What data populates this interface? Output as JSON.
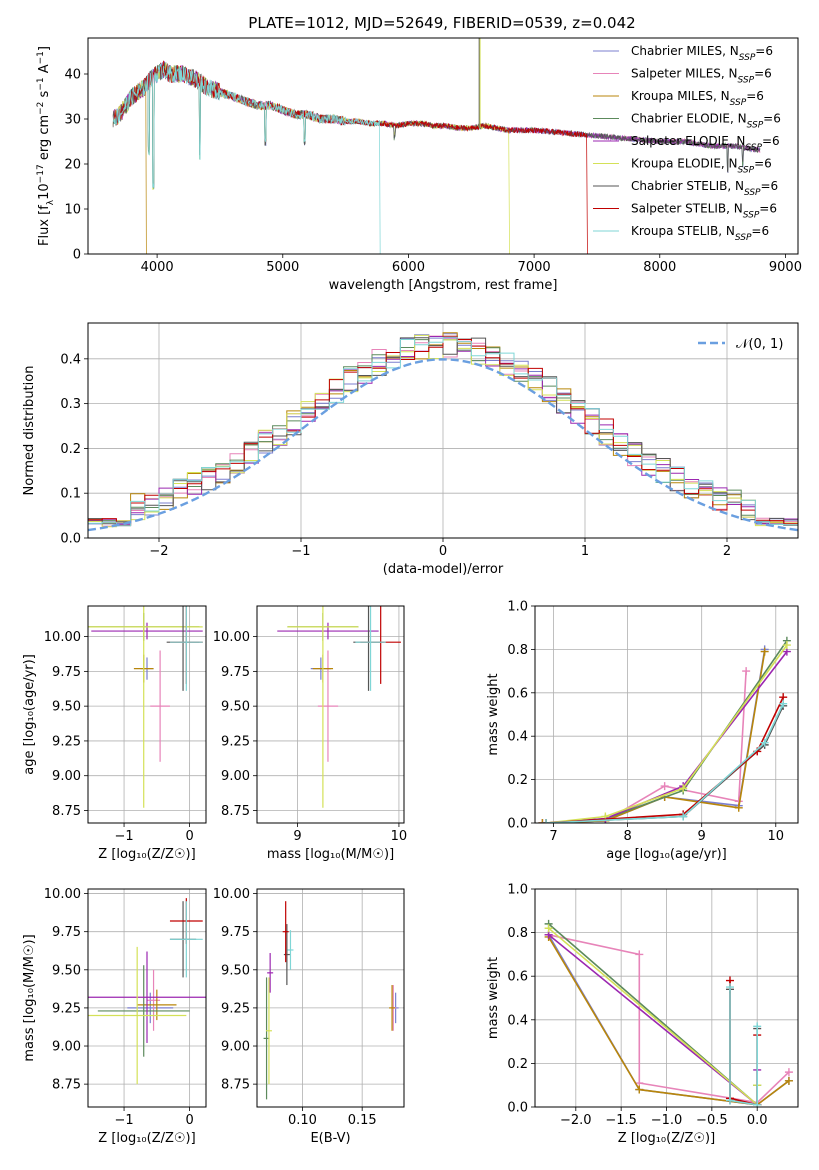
{
  "figure_title": "PLATE=1012, MJD=52649, FIBERID=0539, z=0.042",
  "colors": {
    "Chabrier MILES": "#7b7fcf",
    "Salpeter MILES": "#e784b9",
    "Kroupa MILES": "#b8860b",
    "Chabrier ELODIE": "#5c8a5c",
    "Salpeter ELODIE": "#9b27b0",
    "Kroupa ELODIE": "#d4e157",
    "Chabrier STELIB": "#555555",
    "Salpeter STELIB": "#c00000",
    "Kroupa STELIB": "#7fd6d6",
    "normal_curve": "#6a9fe0"
  },
  "chart_data": [
    {
      "id": "spectrum",
      "type": "line",
      "title": "PLATE=1012, MJD=52649, FIBERID=0539, z=0.042",
      "xlabel": "wavelength [Angstrom, rest frame]",
      "ylabel_parts": [
        "Flux [f",
        "λ",
        "10",
        "−17",
        " erg cm",
        "−2",
        " s",
        "−1",
        " A",
        "−1",
        "]"
      ],
      "xlim": [
        3450,
        9100
      ],
      "ylim": [
        0,
        48
      ],
      "xticks": [
        4000,
        5000,
        6000,
        7000,
        8000,
        9000
      ],
      "yticks": [
        0,
        10,
        20,
        30,
        40
      ],
      "grid": false,
      "legend_placement": "top-right",
      "legend": [
        {
          "name": "Chabrier MILES",
          "sub": "SSP",
          "suffix": "=6"
        },
        {
          "name": "Salpeter MILES",
          "sub": "SSP",
          "suffix": "=6"
        },
        {
          "name": "Kroupa MILES",
          "sub": "SSP",
          "suffix": "=6"
        },
        {
          "name": "Chabrier ELODIE",
          "sub": "SSP",
          "suffix": "=6"
        },
        {
          "name": "Salpeter ELODIE",
          "sub": "SSP",
          "suffix": "=6"
        },
        {
          "name": "Kroupa ELODIE",
          "sub": "SSP",
          "suffix": "=6"
        },
        {
          "name": "Chabrier STELIB",
          "sub": "SSP",
          "suffix": "=6"
        },
        {
          "name": "Salpeter STELIB",
          "sub": "SSP",
          "suffix": "=6"
        },
        {
          "name": "Kroupa STELIB",
          "sub": "SSP",
          "suffix": "=6"
        }
      ],
      "spectrum_x": [
        3650,
        3700,
        3750,
        3800,
        3850,
        3900,
        3950,
        4000,
        4050,
        4100,
        4200,
        4300,
        4400,
        4500,
        4600,
        4700,
        4800,
        4900,
        5000,
        5100,
        5200,
        5300,
        5400,
        5500,
        5600,
        5700,
        5800,
        5900,
        6000,
        6100,
        6200,
        6300,
        6400,
        6500,
        6600,
        6700,
        6800,
        6900,
        7000,
        7200,
        7400,
        7600,
        7800,
        8000,
        8200,
        8400,
        8600,
        8800
      ],
      "spectrum_y": [
        30,
        31,
        33,
        35,
        36,
        37,
        39,
        40,
        41,
        40,
        40,
        39,
        37,
        36,
        35,
        34,
        33,
        33,
        32,
        31,
        31,
        30,
        30,
        29.5,
        29.5,
        29,
        29,
        28.5,
        29,
        29,
        28.5,
        28.5,
        28,
        28,
        28.5,
        28,
        27.5,
        27.5,
        27.5,
        27,
        26.5,
        26,
        25.5,
        25,
        25,
        24,
        24,
        23
      ],
      "dips": [
        {
          "x": 3935,
          "y": 23
        },
        {
          "x": 3970,
          "y": 15
        },
        {
          "x": 4340,
          "y": 22
        },
        {
          "x": 4861,
          "y": 25
        },
        {
          "x": 5175,
          "y": 25
        },
        {
          "x": 5890,
          "y": 26
        },
        {
          "x": 8540,
          "y": 19
        },
        {
          "x": 8660,
          "y": 20
        }
      ],
      "spikes": [
        {
          "x": 6563,
          "y": 48,
          "color": "Chabrier STELIB"
        },
        {
          "x": 6570,
          "y": 48,
          "color": "Kroupa ELODIE"
        }
      ],
      "drops": [
        {
          "x": 3910,
          "color": "Kroupa MILES"
        },
        {
          "x": 5770,
          "color": "Kroupa STELIB"
        },
        {
          "x": 6800,
          "color": "Kroupa ELODIE"
        },
        {
          "x": 7420,
          "color": "Salpeter STELIB"
        }
      ]
    },
    {
      "id": "residuals",
      "type": "step",
      "xlabel": "(data-model)/error",
      "ylabel": "Normed distribution",
      "xlim": [
        -2.5,
        2.5
      ],
      "ylim": [
        0,
        0.48
      ],
      "xticks": [
        -2,
        -1,
        0,
        1,
        2
      ],
      "yticks": [
        0.0,
        0.1,
        0.2,
        0.3,
        0.4
      ],
      "grid": true,
      "legend_placement": "top-right",
      "legend": [
        {
          "name": "𝒩(0, 1)"
        }
      ],
      "bin_width": 0.1
    },
    {
      "id": "age_vs_Z",
      "type": "errorbar",
      "xlabel": "Z [log₁₀(Z/Z☉)]",
      "ylabel": "age  [log₁₀(age/yr)]",
      "xlim": [
        -1.55,
        0.25
      ],
      "ylim": [
        8.66,
        10.22
      ],
      "xticks": [
        -1,
        0
      ],
      "yticks": [
        8.75,
        9.0,
        9.25,
        9.5,
        9.75,
        10.0
      ],
      "grid": true,
      "points": [
        {
          "series": "Chabrier MILES",
          "x": -0.65,
          "xerr": 0.1,
          "y": 9.77,
          "yerr": 0.08
        },
        {
          "series": "Salpeter MILES",
          "x": -0.45,
          "xerr": 0.15,
          "y": 9.5,
          "yerr": 0.4
        },
        {
          "series": "Kroupa MILES",
          "x": -0.7,
          "xerr": 0.15,
          "y": 9.77,
          "yerr": 0.1
        },
        {
          "series": "Chabrier ELODIE",
          "x": -0.7,
          "xerr": 0.85,
          "y": 10.07,
          "yerr": 0.1
        },
        {
          "series": "Salpeter ELODIE",
          "x": -0.65,
          "xerr": 0.85,
          "y": 10.04,
          "yerr": 0.06
        },
        {
          "series": "Kroupa ELODIE",
          "x": -0.7,
          "xerr": 0.9,
          "y": 10.07,
          "yerr": 1.3
        },
        {
          "series": "Chabrier STELIB",
          "x": -0.1,
          "xerr": 0.25,
          "y": 9.96,
          "yerr": 0.35
        },
        {
          "series": "Salpeter STELIB",
          "x": -0.05,
          "xerr": 0.25,
          "y": 9.96,
          "yerr": 0.3
        },
        {
          "series": "Kroupa STELIB",
          "x": -0.05,
          "xerr": 0.25,
          "y": 9.96,
          "yerr": 0.35
        }
      ]
    },
    {
      "id": "age_vs_mass",
      "type": "errorbar",
      "xlabel": "mass [log₁₀(M/M☉)]",
      "xlim": [
        8.6,
        10.05
      ],
      "ylim": [
        8.66,
        10.22
      ],
      "xticks": [
        9,
        10
      ],
      "yticks": [
        8.75,
        9.0,
        9.25,
        9.5,
        9.75,
        10.0
      ],
      "grid": true,
      "points": [
        {
          "series": "Chabrier MILES",
          "x": 9.23,
          "xerr": 0.1,
          "y": 9.77,
          "yerr": 0.08
        },
        {
          "series": "Salpeter MILES",
          "x": 9.3,
          "xerr": 0.1,
          "y": 9.5,
          "yerr": 0.4
        },
        {
          "series": "Kroupa MILES",
          "x": 9.25,
          "xerr": 0.1,
          "y": 9.77,
          "yerr": 0.1
        },
        {
          "series": "Chabrier ELODIE",
          "x": 9.25,
          "xerr": 0.35,
          "y": 10.07,
          "yerr": 0.1
        },
        {
          "series": "Salpeter ELODIE",
          "x": 9.3,
          "xerr": 0.5,
          "y": 10.04,
          "yerr": 0.06
        },
        {
          "series": "Kroupa ELODIE",
          "x": 9.25,
          "xerr": 0.35,
          "y": 10.07,
          "yerr": 1.3
        },
        {
          "series": "Chabrier STELIB",
          "x": 9.7,
          "xerr": 0.15,
          "y": 9.96,
          "yerr": 0.35
        },
        {
          "series": "Salpeter STELIB",
          "x": 9.82,
          "xerr": 0.2,
          "y": 9.96,
          "yerr": 0.3
        },
        {
          "series": "Kroupa STELIB",
          "x": 9.72,
          "xerr": 0.15,
          "y": 9.96,
          "yerr": 0.35
        }
      ]
    },
    {
      "id": "weight_vs_age",
      "type": "line",
      "xlabel": "age  [log₁₀(age/yr)]",
      "ylabel": "mass weight",
      "xlim": [
        6.75,
        10.3
      ],
      "ylim": [
        0,
        1.0
      ],
      "xticks": [
        7,
        8,
        9,
        10
      ],
      "yticks": [
        0.0,
        0.2,
        0.4,
        0.6,
        0.8,
        1.0
      ],
      "grid": true,
      "series": [
        {
          "name": "Chabrier MILES",
          "x": [
            6.85,
            7.7,
            8.5,
            9.5,
            9.85
          ],
          "y": [
            0.0,
            0.01,
            0.12,
            0.08,
            0.8
          ]
        },
        {
          "name": "Salpeter MILES",
          "x": [
            6.85,
            7.7,
            8.5,
            9.5,
            9.6
          ],
          "y": [
            0.0,
            0.01,
            0.17,
            0.1,
            0.7
          ]
        },
        {
          "name": "Kroupa MILES",
          "x": [
            6.85,
            7.7,
            8.5,
            9.5,
            9.85
          ],
          "y": [
            0.0,
            0.01,
            0.12,
            0.07,
            0.79
          ]
        },
        {
          "name": "Chabrier ELODIE",
          "x": [
            6.9,
            7.7,
            8.75,
            10.15
          ],
          "y": [
            0.0,
            0.02,
            0.15,
            0.84
          ]
        },
        {
          "name": "Salpeter ELODIE",
          "x": [
            6.9,
            7.7,
            8.75,
            10.15
          ],
          "y": [
            0.0,
            0.02,
            0.17,
            0.79
          ]
        },
        {
          "name": "Kroupa ELODIE",
          "x": [
            6.9,
            7.7,
            8.75,
            10.15
          ],
          "y": [
            0.0,
            0.03,
            0.16,
            0.82
          ]
        },
        {
          "name": "Chabrier STELIB",
          "x": [
            6.9,
            8.75,
            9.85,
            10.1
          ],
          "y": [
            0.0,
            0.03,
            0.36,
            0.54
          ]
        },
        {
          "name": "Salpeter STELIB",
          "x": [
            6.9,
            8.75,
            9.75,
            10.1
          ],
          "y": [
            0.0,
            0.04,
            0.33,
            0.58
          ]
        },
        {
          "name": "Kroupa STELIB",
          "x": [
            6.9,
            8.75,
            9.85,
            10.1
          ],
          "y": [
            0.0,
            0.03,
            0.37,
            0.55
          ]
        }
      ]
    },
    {
      "id": "mass_vs_Z",
      "type": "errorbar",
      "xlabel": "Z [log₁₀(Z/Z☉)]",
      "ylabel": "mass [log₁₀(M/M☉)]",
      "xlim": [
        -1.55,
        0.25
      ],
      "ylim": [
        8.6,
        10.03
      ],
      "xticks": [
        -1,
        0
      ],
      "yticks": [
        8.75,
        9.0,
        9.25,
        9.5,
        9.75,
        10.0
      ],
      "grid": true,
      "points": [
        {
          "series": "Chabrier MILES",
          "x": -0.6,
          "xerr": 0.35,
          "y": 9.25,
          "yerr": 0.1
        },
        {
          "series": "Salpeter MILES",
          "x": -0.55,
          "xerr": 0.1,
          "y": 9.3,
          "yerr": 0.2
        },
        {
          "series": "Kroupa MILES",
          "x": -0.5,
          "xerr": 0.3,
          "y": 9.27,
          "yerr": 0.1
        },
        {
          "series": "Chabrier ELODIE",
          "x": -0.7,
          "xerr": 0.7,
          "y": 9.23,
          "yerr": 0.3
        },
        {
          "series": "Salpeter ELODIE",
          "x": -0.65,
          "xerr": 0.9,
          "y": 9.32,
          "yerr": 0.3
        },
        {
          "series": "Kroupa ELODIE",
          "x": -0.8,
          "xerr": 0.75,
          "y": 9.2,
          "yerr": 0.45
        },
        {
          "series": "Chabrier STELIB",
          "x": -0.1,
          "xerr": 0.2,
          "y": 9.7,
          "yerr": 0.25
        },
        {
          "series": "Salpeter STELIB",
          "x": -0.05,
          "xerr": 0.25,
          "y": 9.82,
          "yerr": 0.15
        },
        {
          "series": "Kroupa STELIB",
          "x": -0.05,
          "xerr": 0.25,
          "y": 9.7,
          "yerr": 0.25
        }
      ]
    },
    {
      "id": "mass_vs_ebv",
      "type": "errorbar",
      "xlabel": "E(B-V)",
      "xlim": [
        0.062,
        0.185
      ],
      "ylim": [
        8.6,
        10.03
      ],
      "xticks": [
        0.1,
        0.15
      ],
      "yticks": [
        8.75,
        9.0,
        9.25,
        9.5,
        9.75,
        10.0
      ],
      "grid": true,
      "points": [
        {
          "series": "Chabrier MILES",
          "x": 0.178,
          "y": 9.25,
          "yerr": 0.1
        },
        {
          "series": "Salpeter MILES",
          "x": 0.176,
          "y": 9.25,
          "yerr": 0.15
        },
        {
          "series": "Kroupa MILES",
          "x": 0.175,
          "y": 9.25,
          "yerr": 0.15
        },
        {
          "series": "Chabrier ELODIE",
          "x": 0.07,
          "y": 9.05,
          "yerr": 0.4
        },
        {
          "series": "Salpeter ELODIE",
          "x": 0.073,
          "y": 9.48,
          "yerr": 0.13
        },
        {
          "series": "Kroupa ELODIE",
          "x": 0.072,
          "y": 9.1,
          "yerr": 0.35
        },
        {
          "series": "Chabrier STELIB",
          "x": 0.087,
          "y": 9.6,
          "yerr": 0.2
        },
        {
          "series": "Salpeter STELIB",
          "x": 0.086,
          "y": 9.75,
          "yerr": 0.2
        },
        {
          "series": "Kroupa STELIB",
          "x": 0.09,
          "y": 9.63,
          "yerr": 0.13
        }
      ]
    },
    {
      "id": "weight_vs_Z",
      "type": "line",
      "xlabel": "Z [log₁₀(Z/Z☉)]",
      "ylabel": "mass weight",
      "xlim": [
        -2.45,
        0.45
      ],
      "ylim": [
        0,
        1.0
      ],
      "xticks": [
        -2.0,
        -1.5,
        -1.0,
        -0.5,
        0.0
      ],
      "yticks": [
        0.0,
        0.2,
        0.4,
        0.6,
        0.8,
        1.0
      ],
      "grid": true,
      "series": [
        {
          "name": "Chabrier MILES",
          "x": [
            -2.3,
            -1.3,
            0.0,
            0.35
          ],
          "y": [
            0.79,
            0.08,
            0.01,
            0.12
          ]
        },
        {
          "name": "Salpeter MILES",
          "x": [
            -2.3,
            -1.3,
            -1.3,
            0.0,
            0.35
          ],
          "y": [
            0.79,
            0.7,
            0.11,
            0.02,
            0.16
          ]
        },
        {
          "name": "Kroupa MILES",
          "x": [
            -2.3,
            -1.3,
            0.0,
            0.35
          ],
          "y": [
            0.78,
            0.08,
            0.01,
            0.12
          ]
        },
        {
          "name": "Chabrier ELODIE",
          "x": [
            -2.3,
            0.0,
            0.0
          ],
          "y": [
            0.84,
            0.01,
            0.1
          ]
        },
        {
          "name": "Salpeter ELODIE",
          "x": [
            -2.3,
            0.0,
            0.0
          ],
          "y": [
            0.79,
            0.01,
            0.17
          ]
        },
        {
          "name": "Kroupa ELODIE",
          "x": [
            -2.3,
            0.0,
            0.0
          ],
          "y": [
            0.82,
            0.01,
            0.1
          ]
        },
        {
          "name": "Chabrier STELIB",
          "x": [
            -0.3,
            -0.3,
            0.0,
            0.0
          ],
          "y": [
            0.54,
            0.03,
            0.01,
            0.36
          ]
        },
        {
          "name": "Salpeter STELIB",
          "x": [
            -0.3,
            -0.3,
            0.0,
            0.0
          ],
          "y": [
            0.58,
            0.04,
            0.01,
            0.33
          ]
        },
        {
          "name": "Kroupa STELIB",
          "x": [
            -0.3,
            -0.3,
            0.0,
            0.0
          ],
          "y": [
            0.55,
            0.03,
            0.01,
            0.37
          ]
        }
      ]
    }
  ]
}
